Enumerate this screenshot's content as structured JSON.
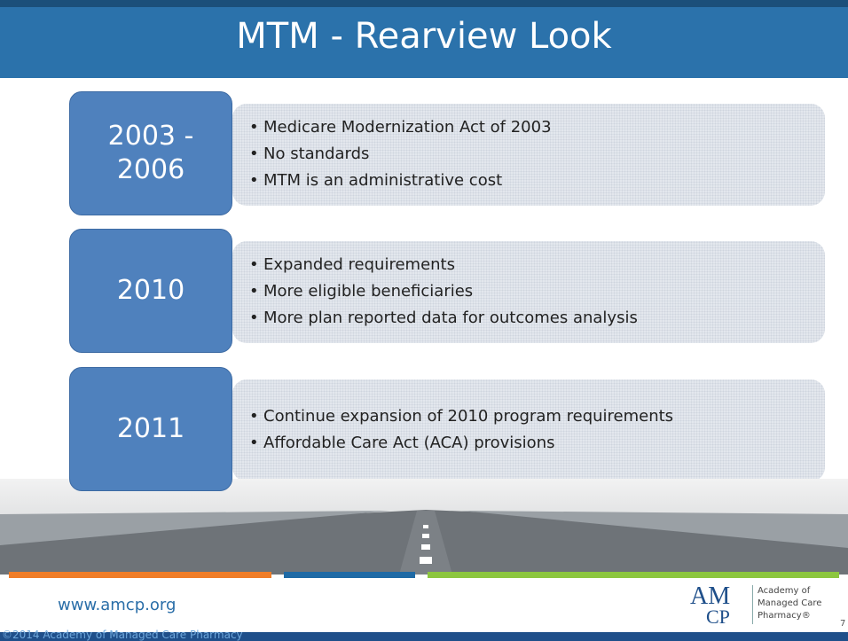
{
  "title": "MTM - Rearview Look",
  "rows": [
    {
      "label": "2003 - 2006",
      "bullets": [
        "Medicare Modernization Act of 2003",
        "No standards",
        "MTM is an administrative cost"
      ]
    },
    {
      "label": "2010",
      "bullets": [
        "Expanded requirements",
        "More eligible beneficiaries",
        "More plan reported data for outcomes analysis"
      ]
    },
    {
      "label": "2011",
      "bullets": [
        "Continue expansion of 2010 program requirements",
        "Affordable Care Act (ACA) provisions"
      ]
    }
  ],
  "footer": {
    "url": "www.amcp.org",
    "copyright": "©2014 Academy of Managed Care Pharmacy",
    "page": "7"
  },
  "logo": {
    "mark_top": "AM",
    "mark_bottom": "CP",
    "lines": [
      "Academy of",
      "Managed Care",
      "Pharmacy®"
    ]
  }
}
